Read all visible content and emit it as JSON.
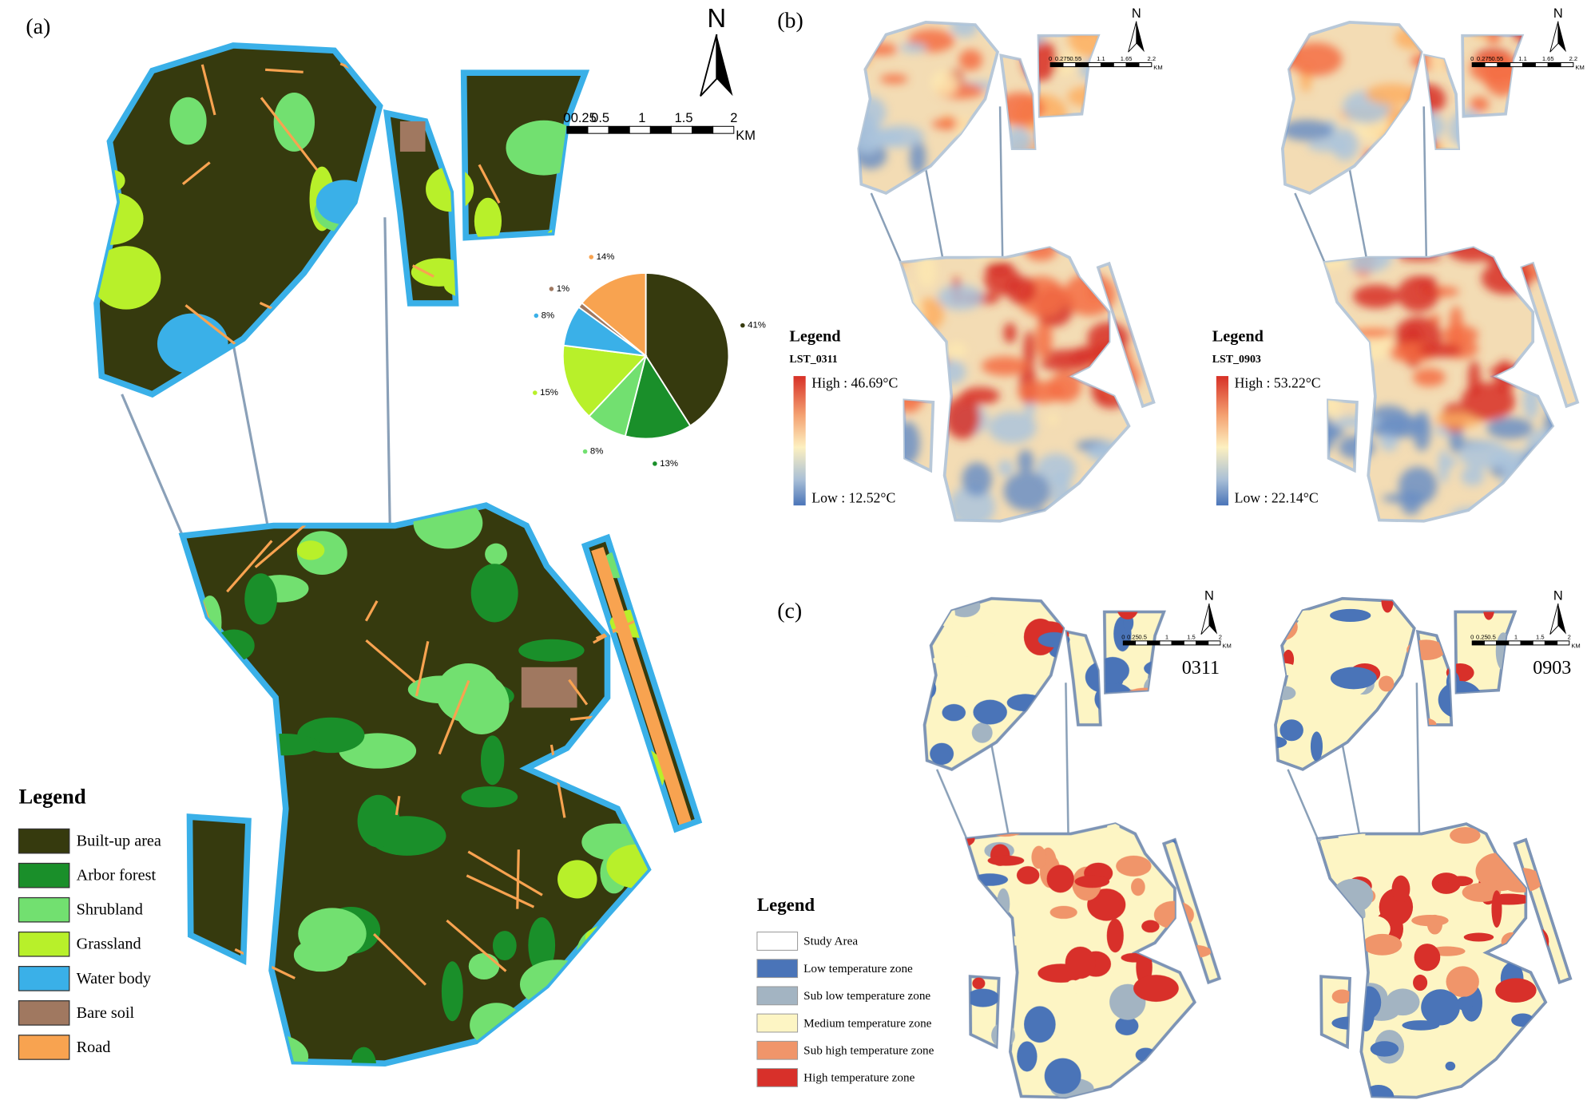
{
  "panel_a": {
    "label": "(a)",
    "north": "N",
    "scale_labels": [
      "0",
      "0.25",
      "0.5",
      "1",
      "1.5",
      "2"
    ],
    "scale_unit": "KM",
    "legend_title": "Legend"
  },
  "chart_data": {
    "type": "pie",
    "categories": [
      "Built-up area",
      "Arbor forest",
      "Shrubland",
      "Grassland",
      "Water body",
      "Bare soil",
      "Road"
    ],
    "values": [
      41,
      13,
      8,
      15,
      8,
      1,
      14
    ],
    "value_labels": [
      "41%",
      "13%",
      "8%",
      "15%",
      "8%",
      "1%",
      "14%"
    ],
    "colors": [
      "#363a0e",
      "#1a8f2a",
      "#72e070",
      "#b8f02a",
      "#3ab0e8",
      "#a07860",
      "#f8a350"
    ]
  },
  "panel_b": {
    "label": "(b)",
    "maps": [
      {
        "north": "N",
        "scale_labels": [
          "0",
          "0.275",
          "0.55",
          "1.1",
          "1.65",
          "2.2"
        ],
        "scale_unit": "KM",
        "legend_title": "Legend",
        "layer": "LST_0311",
        "high": "High : 46.69°C",
        "low": "Low : 12.52°C"
      },
      {
        "north": "N",
        "scale_labels": [
          "0",
          "0.275",
          "0.55",
          "1.1",
          "1.65",
          "2.2"
        ],
        "scale_unit": "KM",
        "legend_title": "Legend",
        "layer": "LST_0903",
        "high": "High : 53.22°C",
        "low": "Low : 22.14°C"
      }
    ]
  },
  "panel_c": {
    "label": "(c)",
    "maps": [
      {
        "north": "N",
        "scale_labels": [
          "0",
          "0.25",
          "0.5",
          "1",
          "1.5",
          "2"
        ],
        "scale_unit": "KM",
        "date": "0311"
      },
      {
        "north": "N",
        "scale_labels": [
          "0",
          "0.25",
          "0.5",
          "1",
          "1.5",
          "2"
        ],
        "scale_unit": "KM",
        "date": "0903"
      }
    ],
    "legend_title": "Legend",
    "legend": [
      {
        "name": "Study Area",
        "color": "#ffffff"
      },
      {
        "name": "Low temperature zone",
        "color": "#4a74b8"
      },
      {
        "name": "Sub low temperature zone",
        "color": "#a3b4c2"
      },
      {
        "name": "Medium temperature zone",
        "color": "#fdf5c4"
      },
      {
        "name": "Sub high temperature zone",
        "color": "#f0956a"
      },
      {
        "name": "High temperature zone",
        "color": "#d8302a"
      }
    ]
  }
}
